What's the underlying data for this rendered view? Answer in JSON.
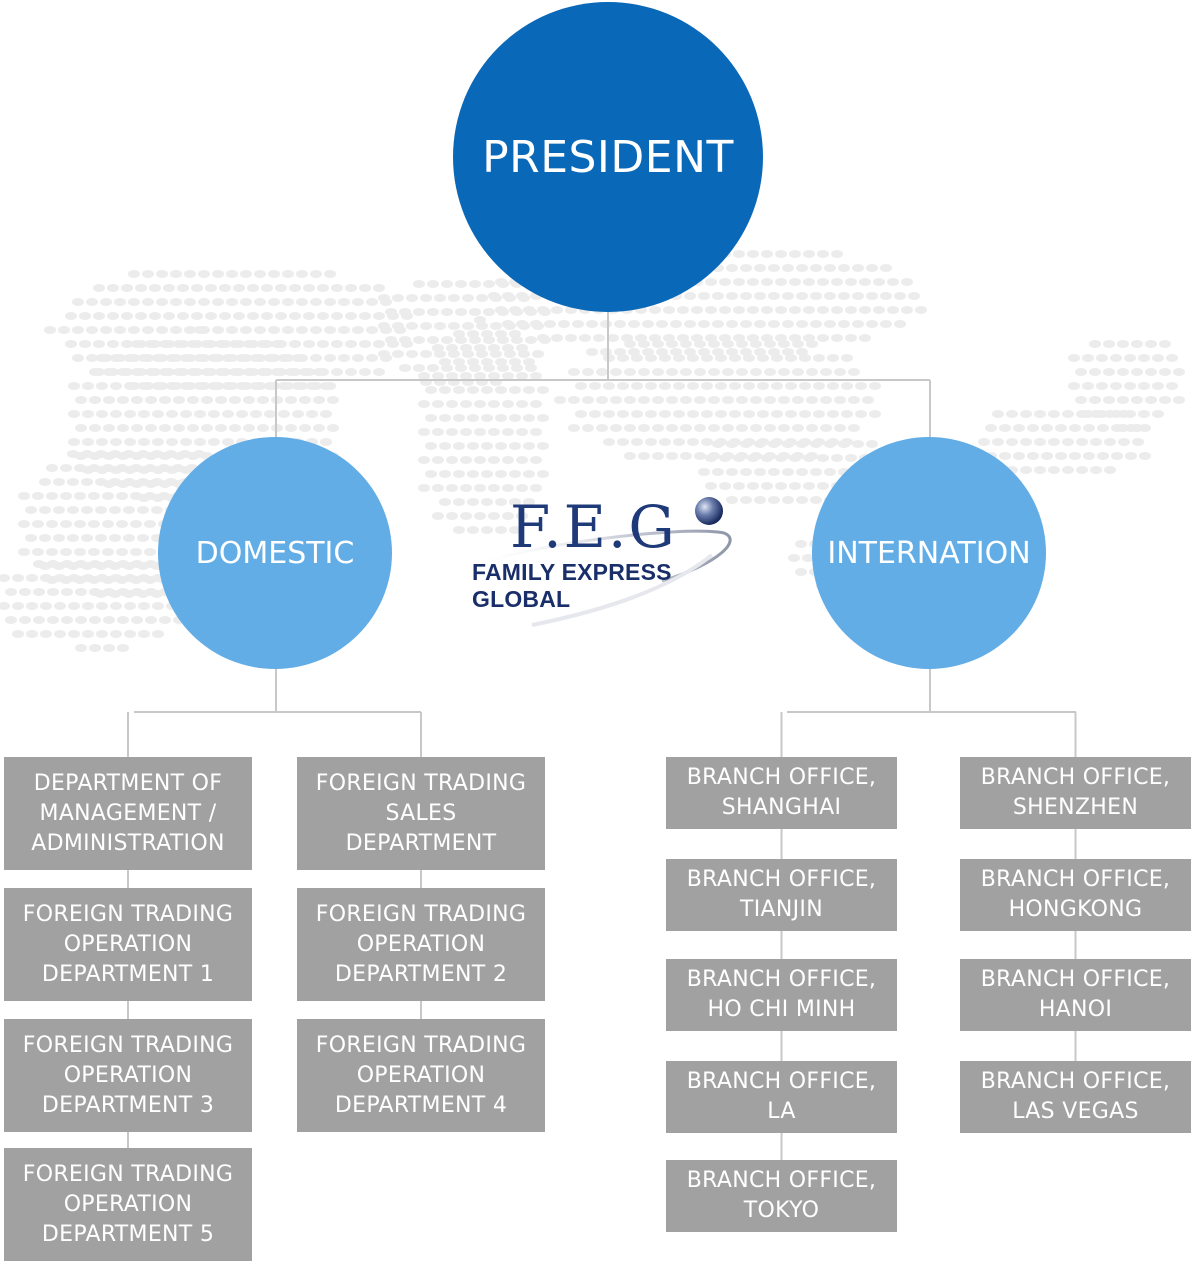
{
  "president": {
    "label": "PRESIDENT"
  },
  "domestic": {
    "label": "DOMESTIC",
    "columns": [
      [
        "DEPARTMENT OF\nMANAGEMENT /\nADMINISTRATION",
        "FOREIGN TRADING\nOPERATION\nDEPARTMENT 1",
        "FOREIGN TRADING\nOPERATION\nDEPARTMENT 3",
        "FOREIGN TRADING\nOPERATION\nDEPARTMENT 5"
      ],
      [
        "FOREIGN TRADING\nSALES\nDEPARTMENT",
        "FOREIGN TRADING\nOPERATION\nDEPARTMENT 2",
        "FOREIGN TRADING\nOPERATION\nDEPARTMENT 4"
      ]
    ]
  },
  "internation": {
    "label": "INTERNATION",
    "columns": [
      [
        "BRANCH OFFICE,\nSHANGHAI",
        "BRANCH OFFICE,\nTIANJIN",
        "BRANCH OFFICE,\nHO CHI MINH",
        "BRANCH OFFICE,\nLA",
        "BRANCH OFFICE,\nTOKYO"
      ],
      [
        "BRANCH OFFICE,\nSHENZHEN",
        "BRANCH OFFICE,\nHONGKONG",
        "BRANCH OFFICE,\nHANOI",
        "BRANCH OFFICE,\nLAS VEGAS"
      ]
    ]
  },
  "logo": {
    "mark": "F.E.G",
    "tagline": "FAMILY EXPRESS GLOBAL"
  },
  "colors": {
    "president": "#0a68b8",
    "level2": "#62ade6",
    "box": "#a1a1a1",
    "line": "#c8c8c8",
    "logo": "#1f3a78",
    "map_dots": "#ececec"
  },
  "icons": {
    "background": "dotted-world-map",
    "logo_orb": "sphere-icon"
  }
}
